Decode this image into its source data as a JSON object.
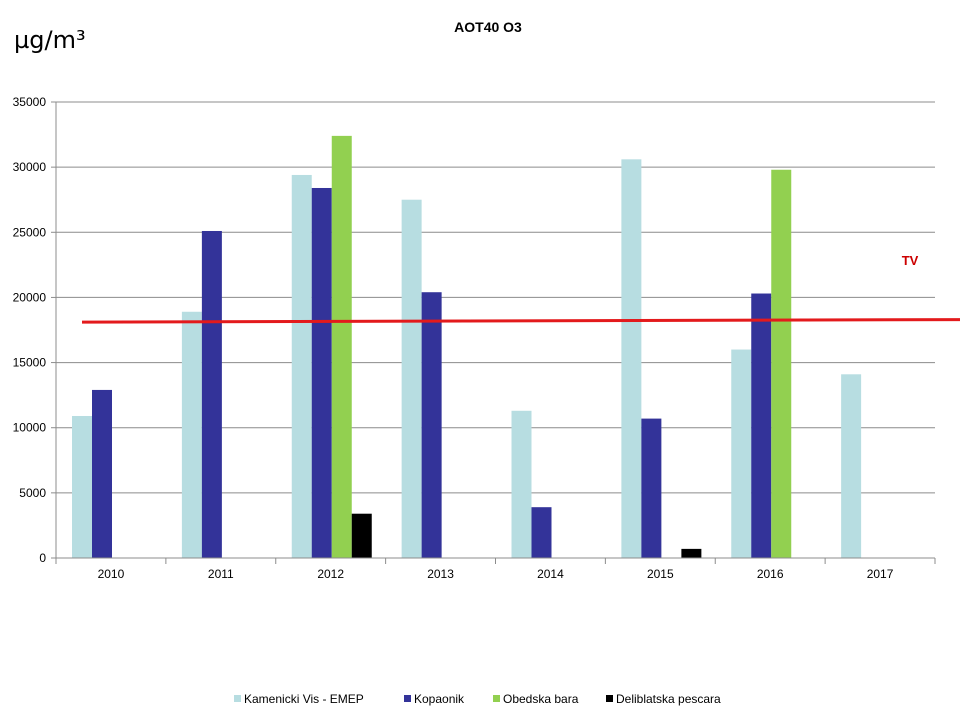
{
  "chart_data": {
    "type": "bar",
    "title": "AOT40 O3",
    "unit_label": "µg/m³",
    "categories": [
      "2010",
      "2011",
      "2012",
      "2013",
      "2014",
      "2015",
      "2016",
      "2017"
    ],
    "ylim": [
      0,
      35000
    ],
    "yticks": [
      0,
      5000,
      10000,
      15000,
      20000,
      25000,
      30000,
      35000
    ],
    "grid": true,
    "legend_position": "bottom",
    "series": [
      {
        "name": "Kamenicki Vis - EMEP",
        "color": "#b7dde1",
        "values": [
          10900,
          18900,
          29400,
          27500,
          11300,
          30600,
          16000,
          14100
        ]
      },
      {
        "name": "Kopaonik",
        "color": "#333399",
        "values": [
          12900,
          25100,
          28400,
          20400,
          3900,
          10700,
          20300,
          null
        ]
      },
      {
        "name": "Obedska bara",
        "color": "#92d050",
        "values": [
          null,
          null,
          32400,
          null,
          null,
          null,
          29800,
          null
        ]
      },
      {
        "name": "Deliblatska pescara",
        "color": "#000000",
        "values": [
          null,
          null,
          3400,
          null,
          null,
          700,
          null,
          null
        ]
      }
    ],
    "target_line": {
      "label": "TV",
      "value_start": 18100,
      "value_end": 18300,
      "color": "#e31a1c"
    }
  }
}
